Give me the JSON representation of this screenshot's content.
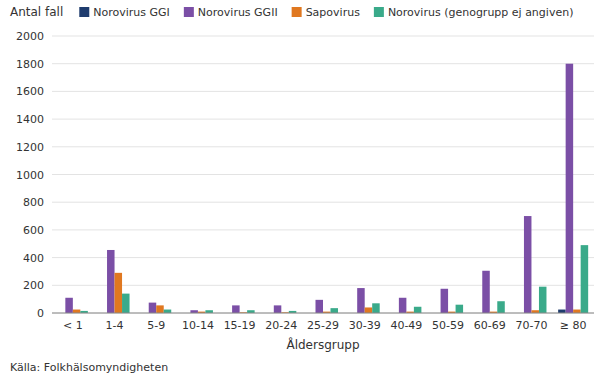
{
  "chart_data": {
    "type": "bar",
    "y_label": "Antal fall",
    "x_label": "Åldersgrupp",
    "annotations": [
      "Källa: Folkhälsomyndigheten"
    ],
    "categories": [
      "< 1",
      "1-4",
      "5-9",
      "10-14",
      "15-19",
      "20-24",
      "25-29",
      "30-39",
      "40-49",
      "50-59",
      "60-69",
      "70-70",
      "≥ 80"
    ],
    "series": [
      {
        "name": "Norovirus GGI",
        "color": "#1f3c6e",
        "values": [
          0,
          0,
          0,
          0,
          0,
          0,
          0,
          0,
          0,
          0,
          0,
          0,
          25
        ]
      },
      {
        "name": "Norovirus GGII",
        "color": "#7b4fa6",
        "values": [
          110,
          455,
          75,
          20,
          55,
          55,
          95,
          180,
          110,
          175,
          305,
          700,
          1800
        ]
      },
      {
        "name": "Sapovirus",
        "color": "#e07820",
        "values": [
          25,
          290,
          55,
          10,
          5,
          5,
          10,
          40,
          10,
          10,
          10,
          20,
          25
        ]
      },
      {
        "name": "Norovirus (genogrupp ej angiven)",
        "color": "#3aaa8a",
        "values": [
          15,
          140,
          25,
          20,
          20,
          15,
          35,
          70,
          45,
          60,
          85,
          190,
          490
        ]
      }
    ],
    "ylim": [
      0,
      2000
    ],
    "yticks": [
      0,
      200,
      400,
      600,
      800,
      1000,
      1200,
      1400,
      1600,
      1800,
      2000
    ],
    "grid": true,
    "legend": "top"
  }
}
